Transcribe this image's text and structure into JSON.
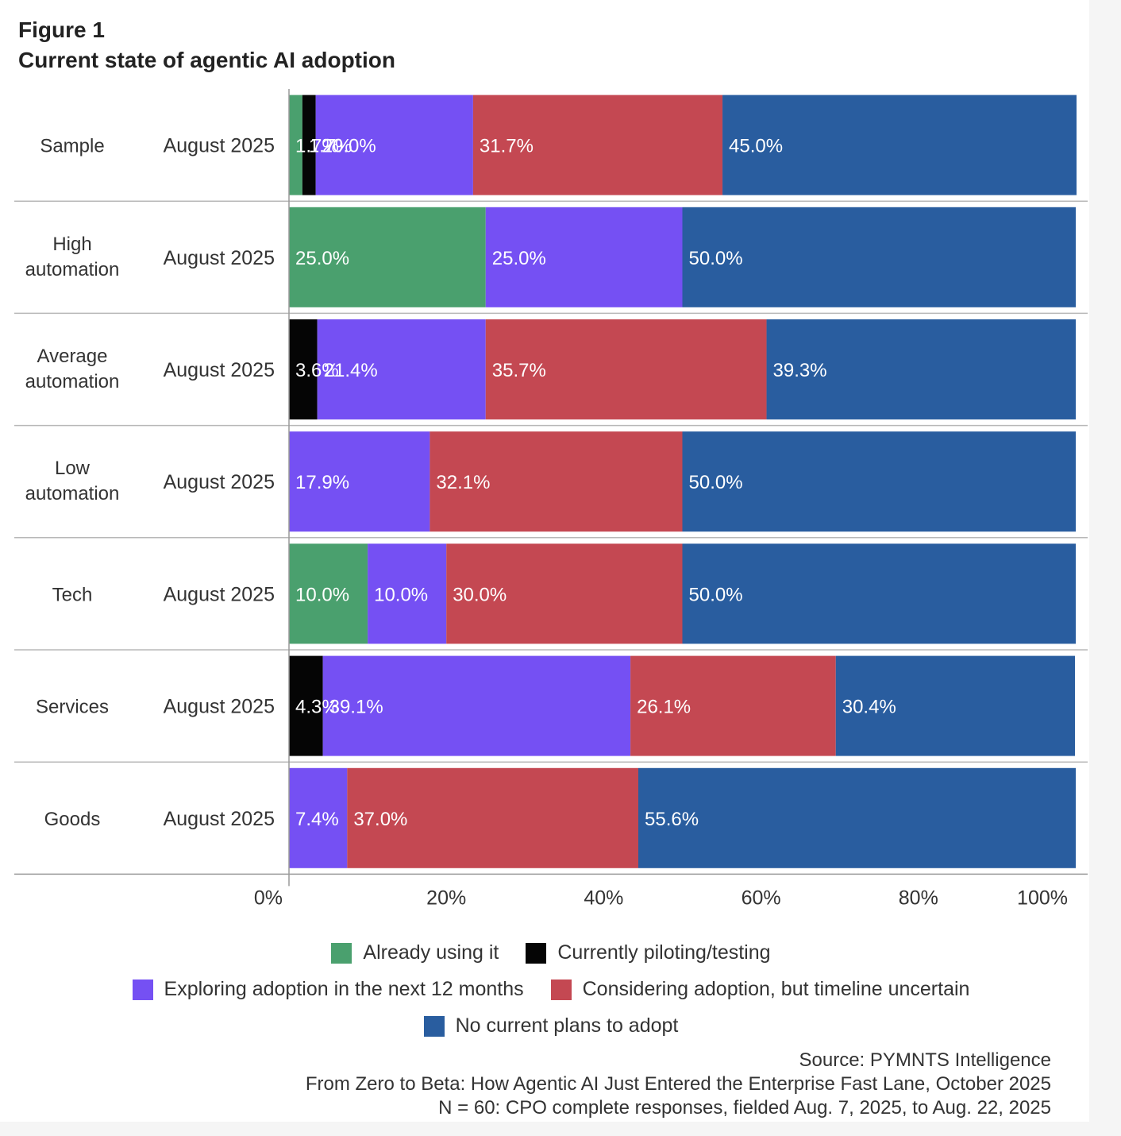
{
  "figure_label": "Figure 1",
  "title": "Current state of agentic AI adoption",
  "colors": {
    "already": "#4aa06e",
    "piloting": "#050505",
    "exploring": "#7550f3",
    "considering": "#c44852",
    "no_plans": "#295d9f"
  },
  "chart_data": {
    "type": "bar",
    "orientation": "horizontal",
    "stacked": true,
    "xlim": [
      0,
      100
    ],
    "x_ticks": [
      "0%",
      "20%",
      "40%",
      "60%",
      "80%",
      "100%"
    ],
    "categories": [
      {
        "group": "Sample",
        "period": "August 2025"
      },
      {
        "group": "High automation",
        "period": "August 2025"
      },
      {
        "group": "Average automation",
        "period": "August 2025"
      },
      {
        "group": "Low automation",
        "period": "August 2025"
      },
      {
        "group": "Tech",
        "period": "August 2025"
      },
      {
        "group": "Services",
        "period": "August 2025"
      },
      {
        "group": "Goods",
        "period": "August 2025"
      }
    ],
    "series": [
      {
        "key": "already",
        "name": "Already using it",
        "values": [
          1.7,
          25.0,
          0,
          0,
          10.0,
          0,
          0
        ]
      },
      {
        "key": "piloting",
        "name": "Currently piloting/testing",
        "values": [
          1.7,
          0,
          3.6,
          0,
          0,
          4.3,
          0
        ]
      },
      {
        "key": "exploring",
        "name": "Exploring adoption in the next 12 months",
        "values": [
          20.0,
          25.0,
          21.4,
          17.9,
          10.0,
          39.1,
          7.4
        ]
      },
      {
        "key": "considering",
        "name": "Considering adoption, but timeline uncertain",
        "values": [
          31.7,
          0,
          35.7,
          32.1,
          30.0,
          26.1,
          37.0
        ]
      },
      {
        "key": "no_plans",
        "name": "No current plans to adopt",
        "values": [
          45.0,
          50.0,
          39.3,
          50.0,
          50.0,
          30.4,
          55.6
        ]
      }
    ]
  },
  "legend": {
    "already": "Already using it",
    "piloting": "Currently piloting/testing",
    "exploring": "Exploring adoption in the next 12 months",
    "considering": "Considering adoption, but timeline uncertain",
    "no_plans": "No current plans to adopt"
  },
  "source": {
    "line1": "Source: PYMNTS Intelligence",
    "line2": "From Zero to Beta: How Agentic AI Just Entered the Enterprise Fast Lane, October 2025",
    "line3": "N = 60: CPO complete responses, fielded Aug. 7, 2025, to Aug. 22, 2025"
  }
}
